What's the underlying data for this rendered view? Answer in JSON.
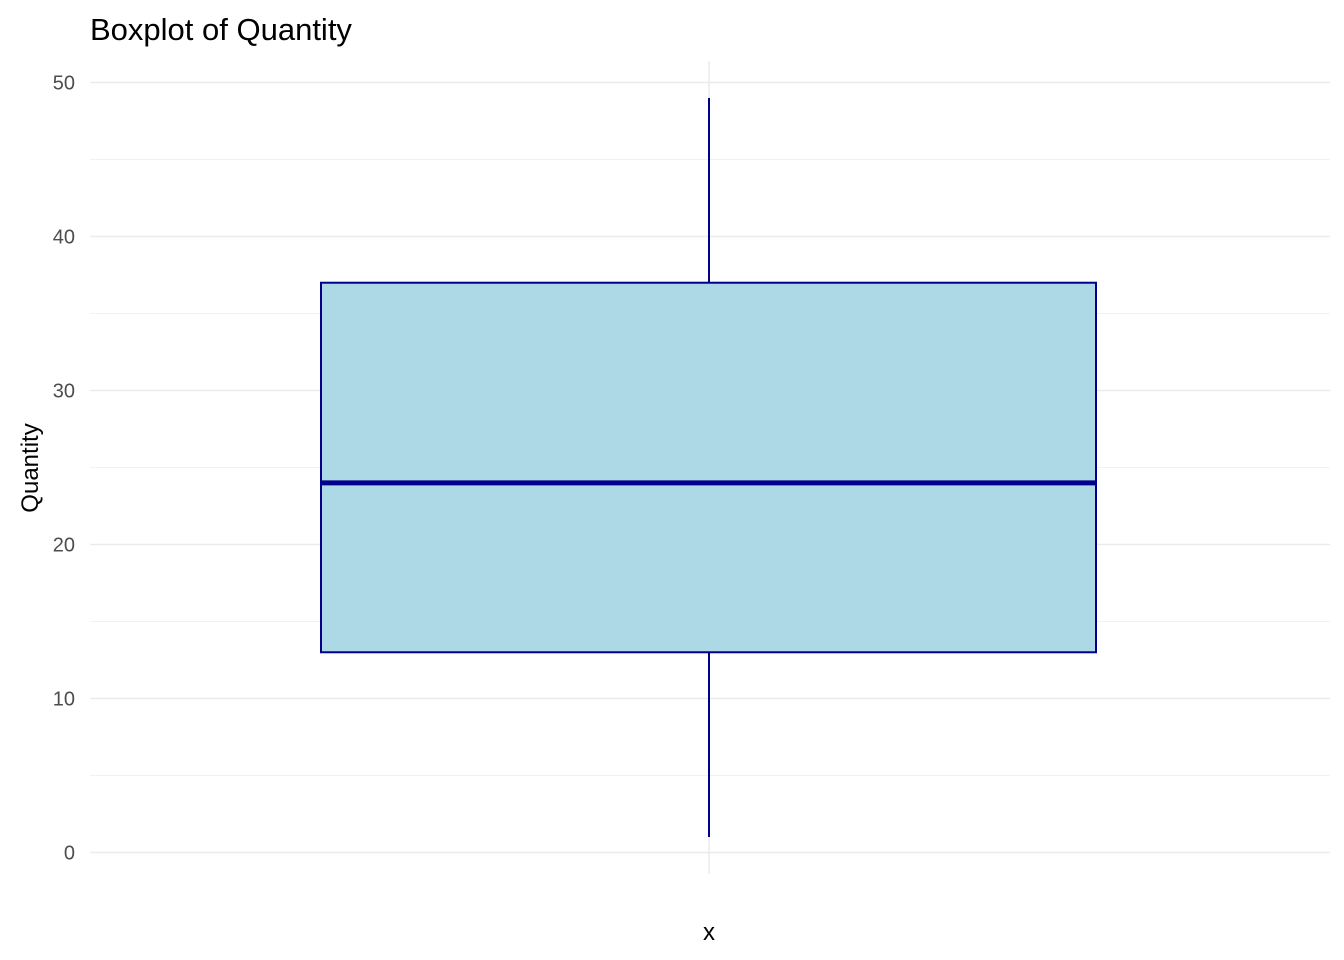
{
  "chart_data": {
    "type": "boxplot",
    "title": "Boxplot of Quantity",
    "xlabel": "x",
    "ylabel": "Quantity",
    "ylim": [
      -1.4,
      51.4
    ],
    "y_ticks": [
      0,
      10,
      20,
      30,
      40,
      50
    ],
    "y_minor_ticks": [
      5,
      15,
      25,
      35,
      45
    ],
    "grid": true,
    "box": {
      "min": 1,
      "q1": 13,
      "median": 24,
      "q3": 37,
      "max": 49
    },
    "colors": {
      "fill": "#add8e6",
      "stroke": "#00008b",
      "grid_major": "#ebebeb",
      "grid_minor": "#f2f2f2",
      "tick_text": "#4d4d4d"
    }
  }
}
